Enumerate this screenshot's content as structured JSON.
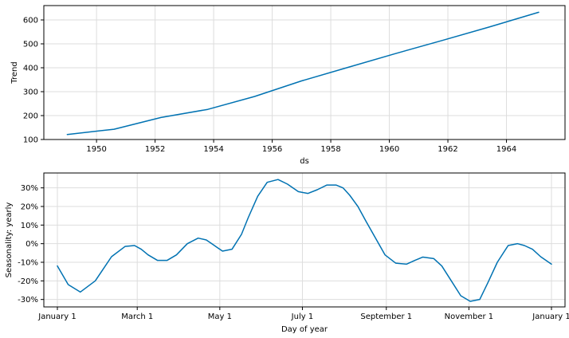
{
  "chart_data": [
    {
      "type": "line",
      "xlabel": "ds",
      "ylabel": "Trend",
      "xlim": [
        1948.2,
        1966.0
      ],
      "ylim": [
        100,
        660
      ],
      "xticks": [
        1950,
        1952,
        1954,
        1956,
        1958,
        1960,
        1962,
        1964
      ],
      "xtick_labels": [
        "1950",
        "1952",
        "1954",
        "1956",
        "1958",
        "1960",
        "1962",
        "1964"
      ],
      "yticks": [
        100,
        200,
        300,
        400,
        500,
        600
      ],
      "ytick_labels": [
        "100",
        "200",
        "300",
        "400",
        "500",
        "600"
      ],
      "grid": true,
      "color": "#0072B2",
      "series": [
        {
          "x": [
            1949.0,
            1950.6,
            1952.2,
            1953.8,
            1955.4,
            1957.0,
            1958.6,
            1960.2,
            1961.8,
            1963.4,
            1965.1
          ],
          "y": [
            121,
            143,
            192,
            226,
            280,
            345,
            402,
            459,
            514,
            570,
            632
          ]
        }
      ]
    },
    {
      "type": "line",
      "xlabel": "Day of year",
      "ylabel": "Seasonality: yearly",
      "xlim": [
        -10,
        375
      ],
      "ylim": [
        -0.34,
        0.38
      ],
      "xticks": [
        0,
        59,
        120,
        181,
        243,
        304,
        365
      ],
      "xtick_labels": [
        "January 1",
        "March 1",
        "May 1",
        "July 1",
        "September 1",
        "November 1",
        "January 1"
      ],
      "yticks": [
        -0.3,
        -0.2,
        -0.1,
        0,
        0.1,
        0.2,
        0.3
      ],
      "ytick_labels": [
        "-30%",
        "-20%",
        "-10%",
        "0%",
        "10%",
        "20%",
        "30%"
      ],
      "grid": true,
      "color": "#0072B2",
      "series": [
        {
          "x": [
            0,
            8,
            17,
            28,
            40,
            50,
            57,
            62,
            67,
            74,
            81,
            88,
            96,
            104,
            110,
            114,
            118,
            122,
            129,
            136,
            141,
            148,
            155,
            163,
            170,
            178,
            185,
            192,
            199,
            206,
            211,
            216,
            222,
            228,
            235,
            242,
            250,
            258,
            264,
            270,
            278,
            284,
            291,
            298,
            305,
            312,
            318,
            325,
            333,
            340,
            345,
            351,
            357,
            365
          ],
          "y": [
            -0.12,
            -0.22,
            -0.26,
            -0.2,
            -0.07,
            -0.015,
            -0.01,
            -0.03,
            -0.06,
            -0.09,
            -0.09,
            -0.06,
            0.0,
            0.03,
            0.02,
            0.0,
            -0.02,
            -0.04,
            -0.03,
            0.05,
            0.14,
            0.255,
            0.33,
            0.345,
            0.32,
            0.28,
            0.27,
            0.29,
            0.315,
            0.315,
            0.3,
            0.26,
            0.2,
            0.12,
            0.03,
            -0.06,
            -0.105,
            -0.11,
            -0.09,
            -0.072,
            -0.08,
            -0.12,
            -0.2,
            -0.28,
            -0.31,
            -0.3,
            -0.21,
            -0.1,
            -0.01,
            0.0,
            -0.01,
            -0.03,
            -0.07,
            -0.11
          ]
        }
      ]
    }
  ]
}
